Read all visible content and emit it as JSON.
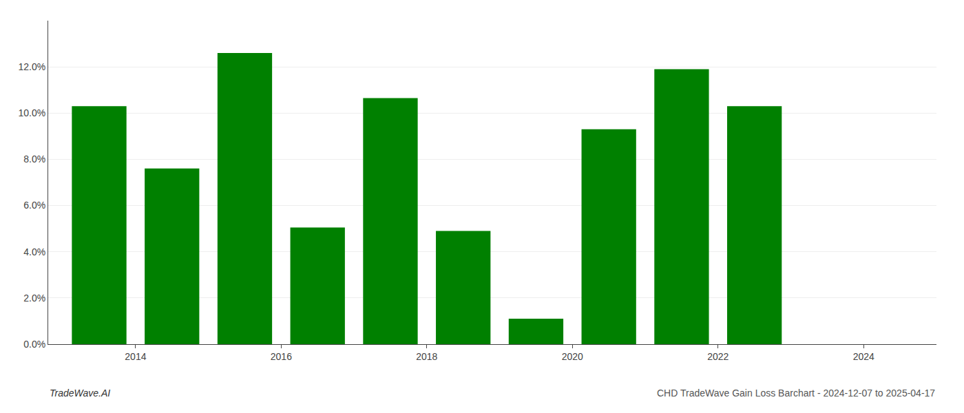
{
  "chart_data": {
    "type": "bar",
    "x": [
      2013,
      2014,
      2015,
      2016,
      2017,
      2018,
      2019,
      2020,
      2021,
      2022
    ],
    "values": [
      0.103,
      0.076,
      0.126,
      0.0505,
      0.1065,
      0.049,
      0.011,
      0.093,
      0.119,
      0.103
    ],
    "color": "#008000",
    "xlim": [
      2012.3,
      2024.5
    ],
    "xticks": [
      {
        "value": 2013.5,
        "label": "2014"
      },
      {
        "value": 2015.5,
        "label": "2016"
      },
      {
        "value": 2017.5,
        "label": "2018"
      },
      {
        "value": 2019.5,
        "label": "2020"
      },
      {
        "value": 2021.5,
        "label": "2022"
      },
      {
        "value": 2023.5,
        "label": "2024"
      }
    ],
    "ylim": [
      0.0,
      0.14
    ],
    "yticks": [
      {
        "value": 0.0,
        "label": "0.0%"
      },
      {
        "value": 0.02,
        "label": "2.0%"
      },
      {
        "value": 0.04,
        "label": "4.0%"
      },
      {
        "value": 0.06,
        "label": "6.0%"
      },
      {
        "value": 0.08,
        "label": "8.0%"
      },
      {
        "value": 0.1,
        "label": "10.0%"
      },
      {
        "value": 0.12,
        "label": "12.0%"
      }
    ],
    "grid": "y",
    "annotations": [
      "TradeWave.AI",
      "CHD TradeWave Gain Loss Barchart - 2024-12-07 to 2025-04-17"
    ]
  }
}
